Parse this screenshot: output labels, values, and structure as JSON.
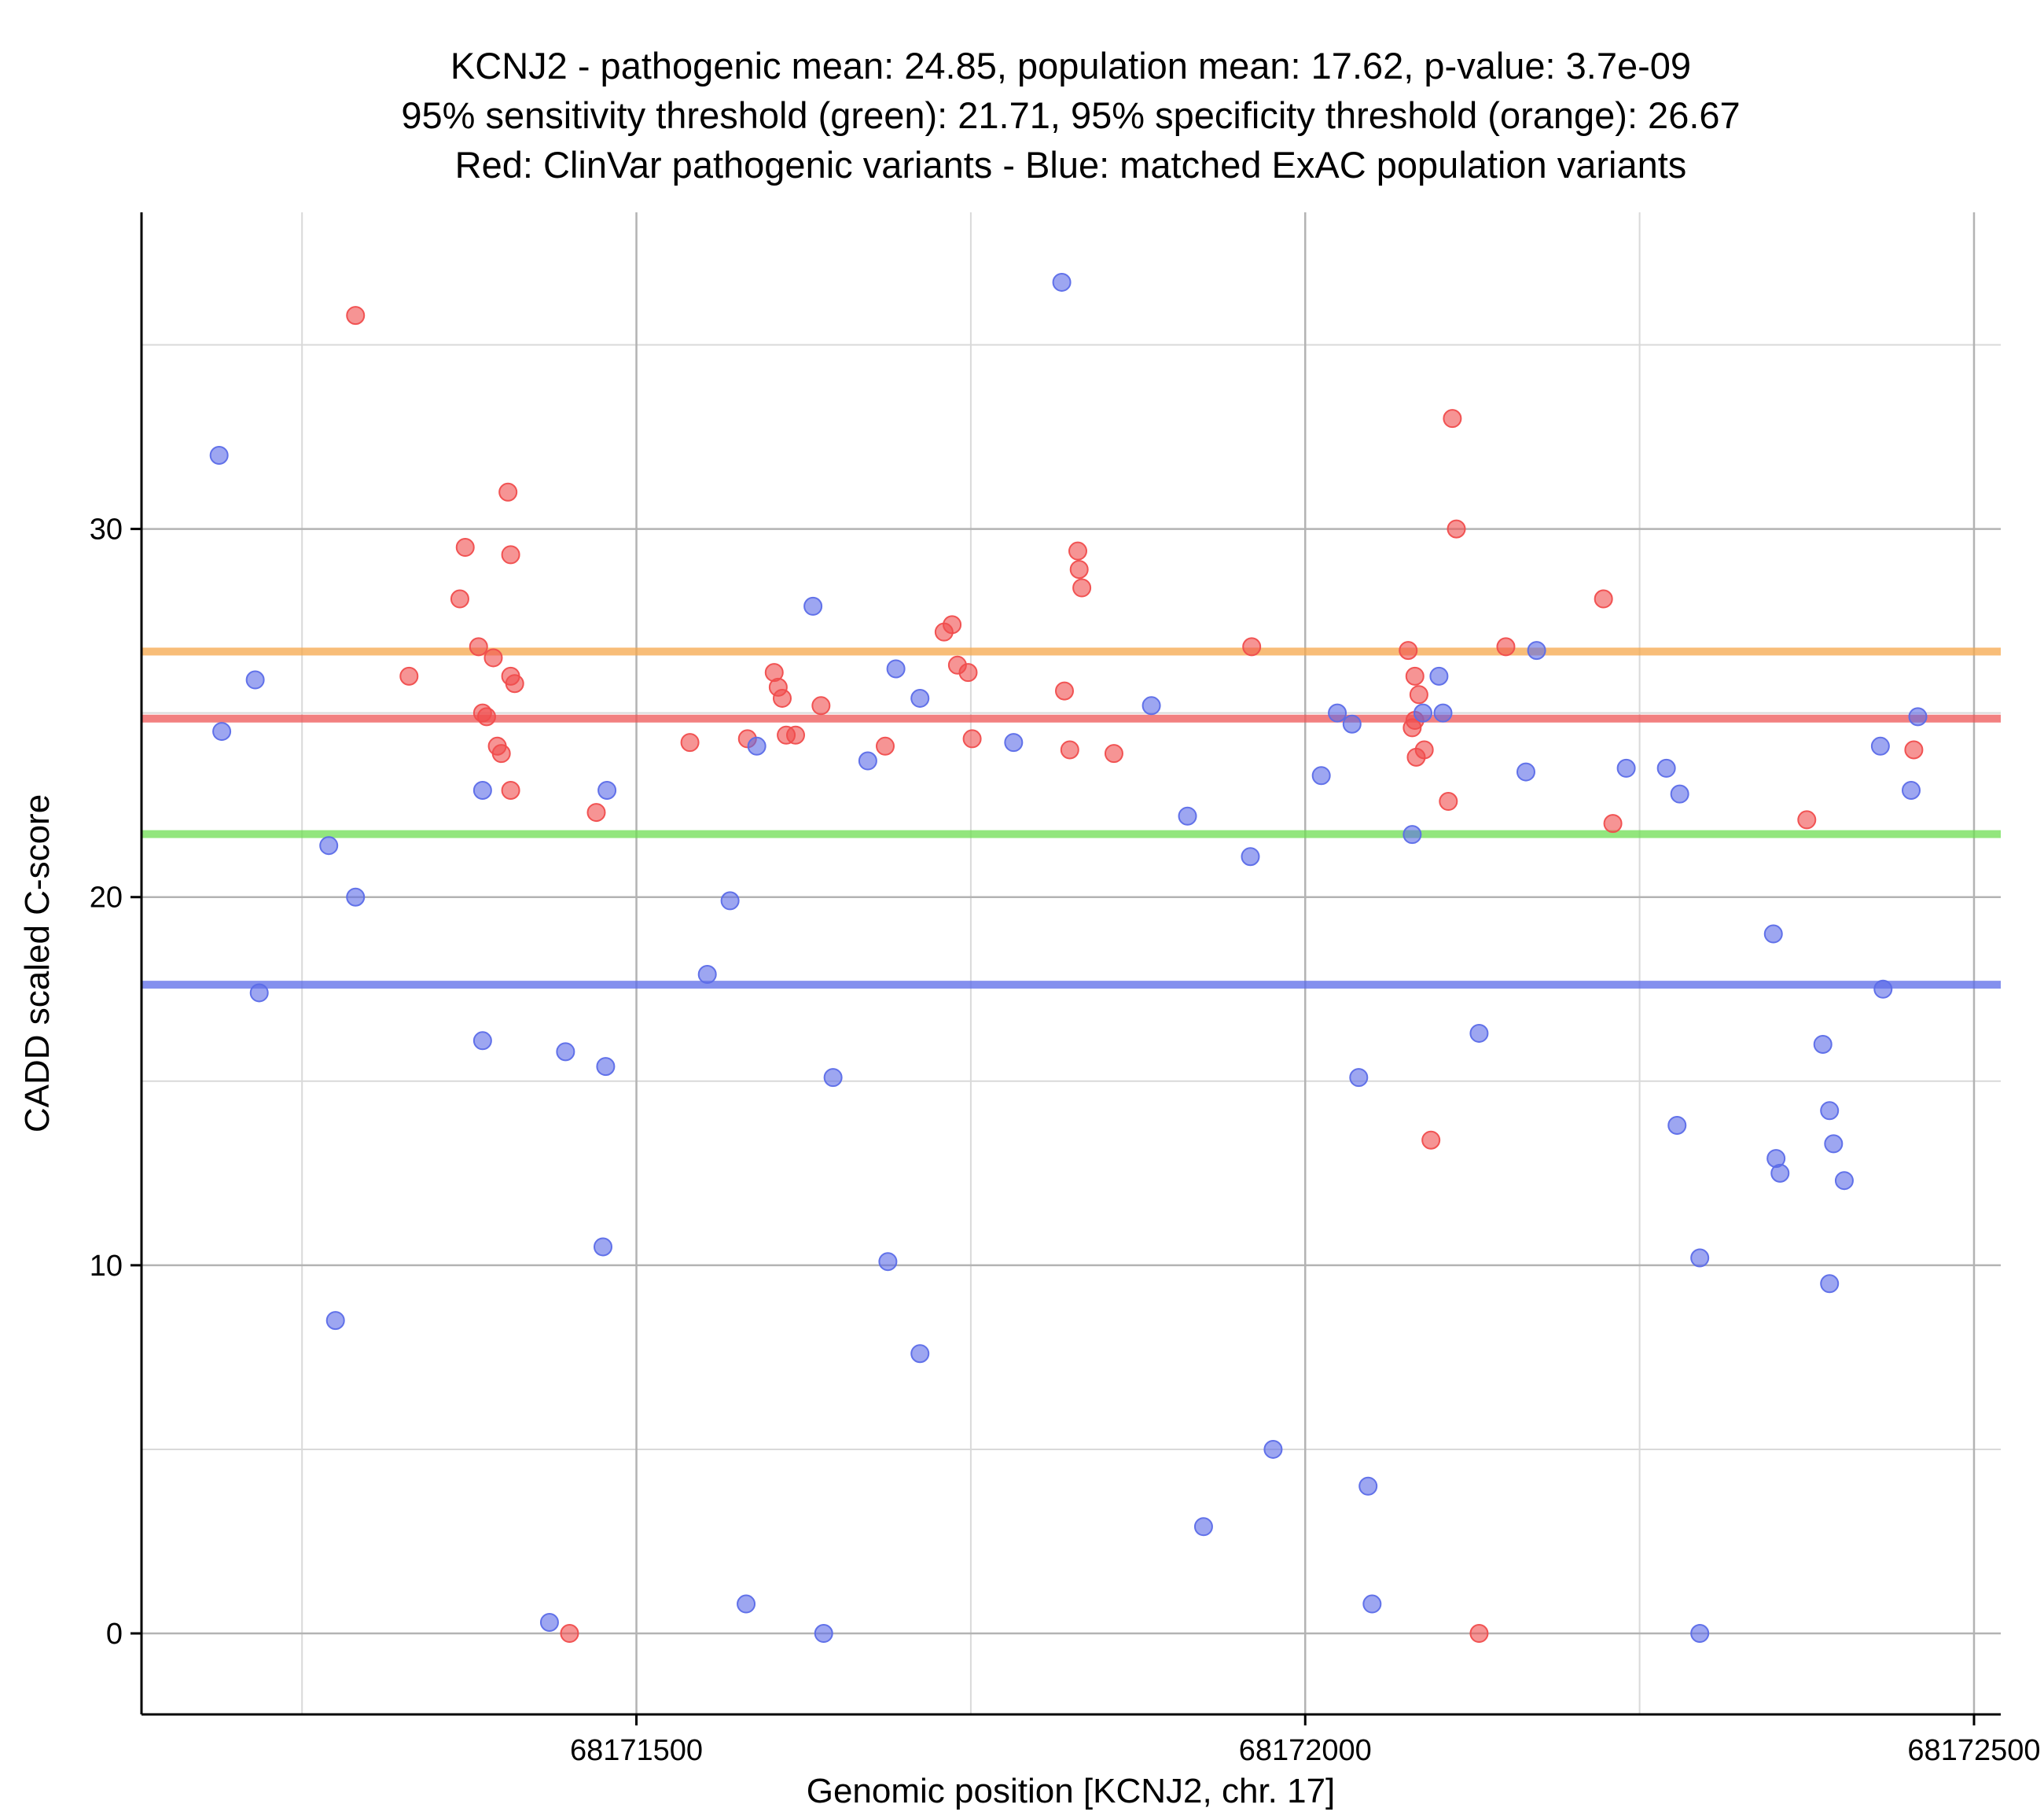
{
  "title": {
    "line1": "KCNJ2 - pathogenic mean: 24.85, population mean: 17.62, p-value: 3.7e-09",
    "line2": "95% sensitivity threshold (green): 21.71, 95% specificity threshold (orange): 26.67",
    "line3": "Red: ClinVar pathogenic variants - Blue: matched ExAC population variants"
  },
  "chart_data": {
    "type": "scatter",
    "xlabel": "Genomic position [KCNJ2, chr. 17]",
    "ylabel": "CADD scaled C-score",
    "x_ticks": [
      68171500,
      68172000,
      68172500
    ],
    "x_minor_ticks": [
      68171250,
      68171750,
      68172250
    ],
    "y_ticks": [
      0,
      10,
      20,
      30
    ],
    "y_minor_ticks": [
      5,
      15,
      25,
      35
    ],
    "xlim": [
      68171130,
      68172520
    ],
    "ylim": [
      -2.2,
      38.6
    ],
    "grid": true,
    "colors": {
      "pathogenic_point": "#f04c4c",
      "population_point": "#5b6be8",
      "pathogenic_mean_line": "#ee5555",
      "population_mean_line": "#5b6be8",
      "sensitivity_line": "#6ede52",
      "specificity_line": "#f6a74b",
      "grid_major": "#b3b3b3",
      "grid_minor": "#d9d9d9",
      "axis": "#000000"
    },
    "thresholds": [
      {
        "name": "population mean",
        "value": 17.62,
        "color": "#5b6be8"
      },
      {
        "name": "95% sensitivity threshold",
        "value": 21.71,
        "color": "#6ede52"
      },
      {
        "name": "pathogenic mean",
        "value": 24.85,
        "color": "#ee5555"
      },
      {
        "name": "95% specificity threshold",
        "value": 26.67,
        "color": "#f6a74b"
      }
    ],
    "series": [
      {
        "name": "ClinVar pathogenic variants",
        "color": "#f04c4c",
        "points": [
          [
            68171290,
            35.8
          ],
          [
            68171330,
            26.0
          ],
          [
            68171368,
            28.1
          ],
          [
            68171372,
            29.5
          ],
          [
            68171382,
            26.8
          ],
          [
            68171385,
            25.0
          ],
          [
            68171388,
            24.9
          ],
          [
            68171393,
            26.5
          ],
          [
            68171396,
            24.1
          ],
          [
            68171399,
            23.9
          ],
          [
            68171404,
            31.0
          ],
          [
            68171406,
            29.3
          ],
          [
            68171406,
            26.0
          ],
          [
            68171409,
            25.8
          ],
          [
            68171406,
            22.9
          ],
          [
            68171450,
            0.0
          ],
          [
            68171470,
            22.3
          ],
          [
            68171540,
            24.2
          ],
          [
            68171583,
            24.3
          ],
          [
            68171603,
            26.1
          ],
          [
            68171606,
            25.7
          ],
          [
            68171609,
            25.4
          ],
          [
            68171612,
            24.4
          ],
          [
            68171619,
            24.4
          ],
          [
            68171638,
            25.2
          ],
          [
            68171686,
            24.1
          ],
          [
            68171730,
            27.2
          ],
          [
            68171736,
            27.4
          ],
          [
            68171740,
            26.3
          ],
          [
            68171748,
            26.1
          ],
          [
            68171751,
            24.3
          ],
          [
            68171820,
            25.6
          ],
          [
            68171824,
            24.0
          ],
          [
            68171830,
            29.4
          ],
          [
            68171831,
            28.9
          ],
          [
            68171833,
            28.4
          ],
          [
            68171857,
            23.9
          ],
          [
            68171960,
            26.8
          ],
          [
            68172077,
            26.7
          ],
          [
            68172082,
            26.0
          ],
          [
            68172085,
            25.5
          ],
          [
            68172082,
            24.8
          ],
          [
            68172080,
            24.6
          ],
          [
            68172083,
            23.8
          ],
          [
            68172089,
            24.0
          ],
          [
            68172094,
            13.4
          ],
          [
            68172107,
            22.6
          ],
          [
            68172110,
            33.0
          ],
          [
            68172113,
            30.0
          ],
          [
            68172130,
            0.0
          ],
          [
            68172150,
            26.8
          ],
          [
            68172223,
            28.1
          ],
          [
            68172230,
            22.0
          ],
          [
            68172375,
            22.1
          ],
          [
            68172455,
            24.0
          ]
        ]
      },
      {
        "name": "matched ExAC population variants",
        "color": "#5b6be8",
        "points": [
          [
            68171188,
            32.0
          ],
          [
            68171190,
            24.5
          ],
          [
            68171215,
            25.9
          ],
          [
            68171218,
            17.4
          ],
          [
            68171270,
            21.4
          ],
          [
            68171275,
            8.5
          ],
          [
            68171290,
            20.0
          ],
          [
            68171385,
            22.9
          ],
          [
            68171385,
            16.1
          ],
          [
            68171435,
            0.3
          ],
          [
            68171447,
            15.8
          ],
          [
            68171478,
            22.9
          ],
          [
            68171477,
            15.4
          ],
          [
            68171475,
            10.5
          ],
          [
            68171553,
            17.9
          ],
          [
            68171570,
            19.9
          ],
          [
            68171582,
            0.8
          ],
          [
            68171590,
            24.1
          ],
          [
            68171632,
            27.9
          ],
          [
            68171647,
            15.1
          ],
          [
            68171640,
            0.0
          ],
          [
            68171673,
            23.7
          ],
          [
            68171694,
            26.2
          ],
          [
            68171712,
            25.4
          ],
          [
            68171688,
            10.1
          ],
          [
            68171712,
            7.6
          ],
          [
            68171782,
            24.2
          ],
          [
            68171818,
            36.7
          ],
          [
            68171885,
            25.2
          ],
          [
            68171912,
            22.2
          ],
          [
            68171924,
            2.9
          ],
          [
            68171959,
            21.1
          ],
          [
            68171976,
            5.0
          ],
          [
            68172012,
            23.3
          ],
          [
            68172024,
            25.0
          ],
          [
            68172035,
            24.7
          ],
          [
            68172040,
            15.1
          ],
          [
            68172047,
            4.0
          ],
          [
            68172050,
            0.8
          ],
          [
            68172080,
            21.7
          ],
          [
            68172088,
            25.0
          ],
          [
            68172100,
            26.0
          ],
          [
            68172103,
            25.0
          ],
          [
            68172130,
            16.3
          ],
          [
            68172165,
            23.4
          ],
          [
            68172173,
            26.7
          ],
          [
            68172240,
            23.5
          ],
          [
            68172270,
            23.5
          ],
          [
            68172280,
            22.8
          ],
          [
            68172278,
            13.8
          ],
          [
            68172295,
            10.2
          ],
          [
            68172295,
            0.0
          ],
          [
            68172350,
            19.0
          ],
          [
            68172352,
            12.9
          ],
          [
            68172355,
            12.5
          ],
          [
            68172387,
            16.0
          ],
          [
            68172392,
            14.2
          ],
          [
            68172395,
            13.3
          ],
          [
            68172403,
            12.3
          ],
          [
            68172392,
            9.5
          ],
          [
            68172430,
            24.1
          ],
          [
            68172432,
            17.5
          ],
          [
            68172453,
            22.9
          ],
          [
            68172458,
            24.9
          ]
        ]
      }
    ]
  }
}
